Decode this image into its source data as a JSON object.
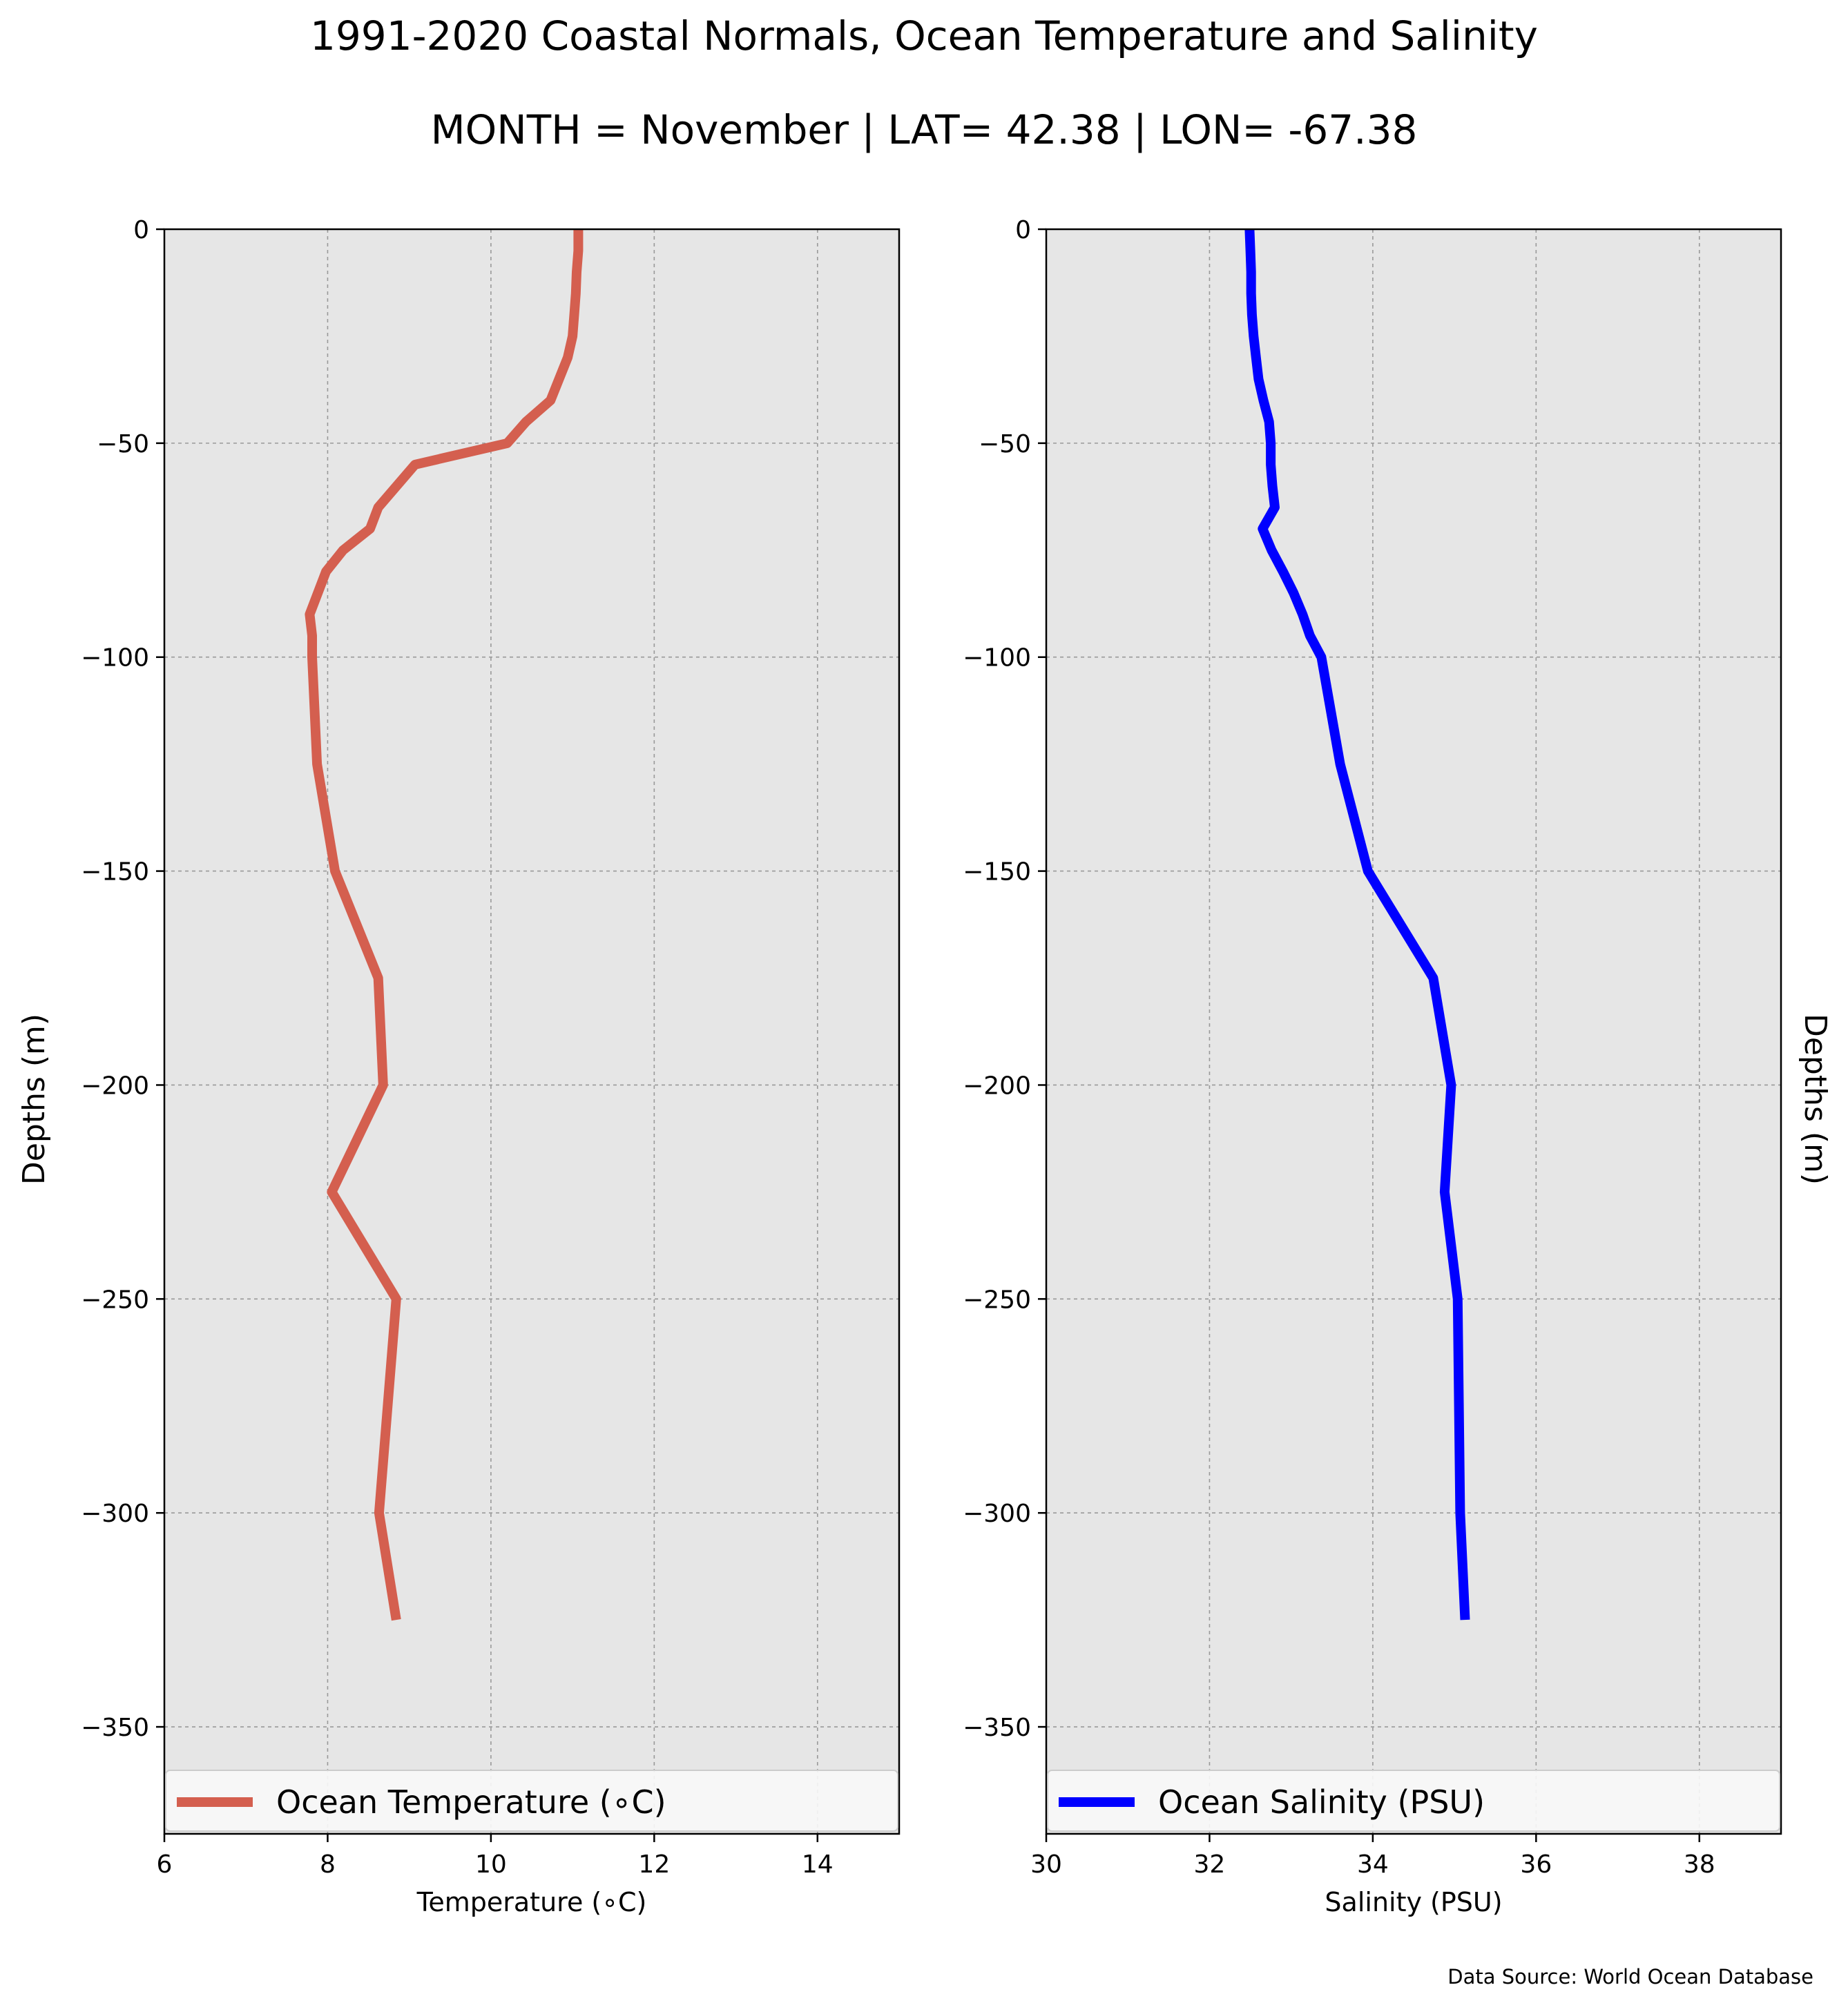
{
  "title": "1991-2020 Coastal Normals, Ocean Temperature and Salinity",
  "subtitle": "MONTH = November | LAT= 42.38 | LON= -67.38",
  "source": "Data Source: World Ocean Database",
  "colors": {
    "temperature": "#d45f4f",
    "salinity": "#0000ff",
    "axes_bg": "#e6e6e6",
    "grid": "#999999"
  },
  "chart_data": [
    {
      "type": "line",
      "xlabel": "Temperature ($^\\circ$C)",
      "xlabel_display": "Temperature (∘C)",
      "ylabel": "Depths (m)",
      "xlim": [
        6,
        15
      ],
      "ylim": [
        -375,
        0
      ],
      "xticks": [
        6,
        8,
        10,
        12,
        14
      ],
      "yticks": [
        0,
        -50,
        -100,
        -150,
        -200,
        -250,
        -300,
        -350
      ],
      "ytick_labels": [
        "0",
        "−50",
        "−100",
        "−150",
        "−200",
        "−250",
        "−300",
        "−350"
      ],
      "grid": true,
      "legend_position": "lower center",
      "series": [
        {
          "name": "Ocean Temperature (∘C)",
          "color": "#d45f4f",
          "x": [
            11.07,
            11.07,
            11.05,
            11.04,
            11.02,
            11.0,
            10.94,
            10.73,
            10.43,
            10.2,
            9.07,
            8.62,
            8.52,
            8.19,
            7.98,
            7.78,
            7.81,
            7.81,
            7.87,
            8.09,
            8.62,
            8.68,
            8.05,
            8.84,
            8.63,
            8.84
          ],
          "y": [
            0,
            -5,
            -10,
            -15,
            -20,
            -25,
            -30,
            -40,
            -45,
            -50,
            -55,
            -65,
            -70,
            -75,
            -80,
            -90,
            -95,
            -100,
            -125,
            -150,
            -175,
            -200,
            -225,
            -250,
            -300,
            -325
          ]
        }
      ]
    },
    {
      "type": "line",
      "xlabel": "Salinity (PSU)",
      "ylabel": "Depths (m)",
      "xlim": [
        30,
        39
      ],
      "ylim": [
        -375,
        0
      ],
      "xticks": [
        30,
        32,
        34,
        36,
        38
      ],
      "yticks": [
        0,
        -50,
        -100,
        -150,
        -200,
        -250,
        -300,
        -350
      ],
      "ytick_labels": [
        "0",
        "−50",
        "−100",
        "−150",
        "−200",
        "−250",
        "−300",
        "−350"
      ],
      "grid": true,
      "legend_position": "lower center",
      "series": [
        {
          "name": "Ocean Salinity (PSU)",
          "color": "#0000ff",
          "x": [
            32.49,
            32.5,
            32.51,
            32.51,
            32.52,
            32.54,
            32.57,
            32.6,
            32.66,
            32.73,
            32.75,
            32.75,
            32.77,
            32.8,
            32.65,
            32.76,
            32.9,
            33.03,
            33.14,
            33.23,
            33.37,
            33.6,
            33.94,
            34.74,
            34.96,
            34.88,
            35.04,
            35.07,
            35.13
          ],
          "y": [
            0,
            -5,
            -10,
            -15,
            -20,
            -25,
            -30,
            -35,
            -40,
            -45,
            -50,
            -55,
            -60,
            -65,
            -70,
            -75,
            -80,
            -85,
            -90,
            -95,
            -100,
            -125,
            -150,
            -175,
            -200,
            -225,
            -250,
            -300,
            -325
          ]
        }
      ]
    }
  ]
}
